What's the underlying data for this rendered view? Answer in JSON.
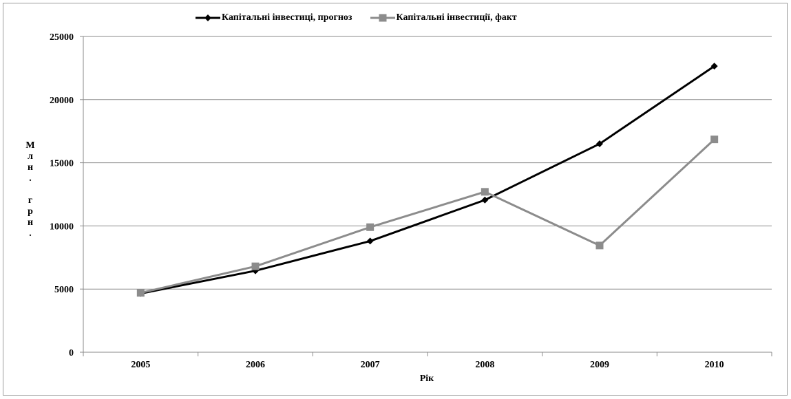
{
  "chart_data": {
    "type": "line",
    "categories": [
      "2005",
      "2006",
      "2007",
      "2008",
      "2009",
      "2010"
    ],
    "series": [
      {
        "name": "Капітальні інвестиці, прогноз",
        "values": [
          4650,
          6450,
          8800,
          12050,
          16500,
          22650
        ],
        "color": "#000000",
        "marker": "diamond"
      },
      {
        "name": "Капітальні інвестиції, факт",
        "values": [
          4700,
          6800,
          9900,
          12700,
          8450,
          16850
        ],
        "color": "#8c8c8c",
        "marker": "square"
      }
    ],
    "title": "",
    "xlabel": "Рік",
    "ylabel": "Млн. грн.",
    "ylim": [
      0,
      25000
    ],
    "yticks": [
      0,
      5000,
      10000,
      15000,
      20000,
      25000
    ],
    "grid": true,
    "legend_position": "top"
  }
}
